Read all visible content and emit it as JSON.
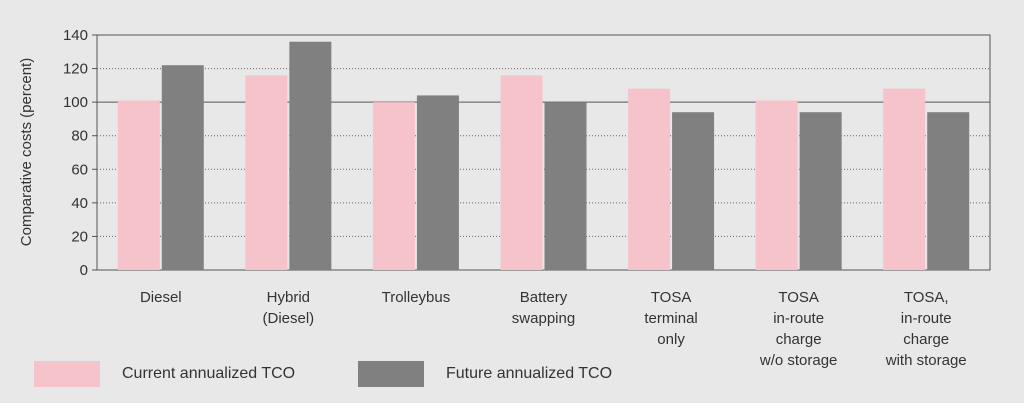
{
  "chart_data": {
    "type": "bar",
    "ylabel": "Comparative costs (percent)",
    "ylim": [
      0,
      140
    ],
    "yticks": [
      0,
      20,
      40,
      60,
      80,
      100,
      120,
      140
    ],
    "grid": true,
    "legend_position": "bottom-left",
    "categories": [
      [
        "Diesel"
      ],
      [
        "Hybrid",
        "(Diesel)"
      ],
      [
        "Trolleybus"
      ],
      [
        "Battery",
        "swapping"
      ],
      [
        "TOSA",
        "terminal",
        "only"
      ],
      [
        "TOSA",
        "in-route",
        "charge",
        "w/o storage"
      ],
      [
        "TOSA,",
        "in-route",
        "charge",
        "with storage"
      ]
    ],
    "series": [
      {
        "name": "Current annualized TCO",
        "color": "#f6c3cb",
        "values": [
          101,
          116,
          100,
          116,
          108,
          101,
          108
        ]
      },
      {
        "name": "Future annualized TCO",
        "color": "#808080",
        "values": [
          122,
          136,
          104,
          100,
          94,
          94,
          94
        ]
      }
    ]
  }
}
